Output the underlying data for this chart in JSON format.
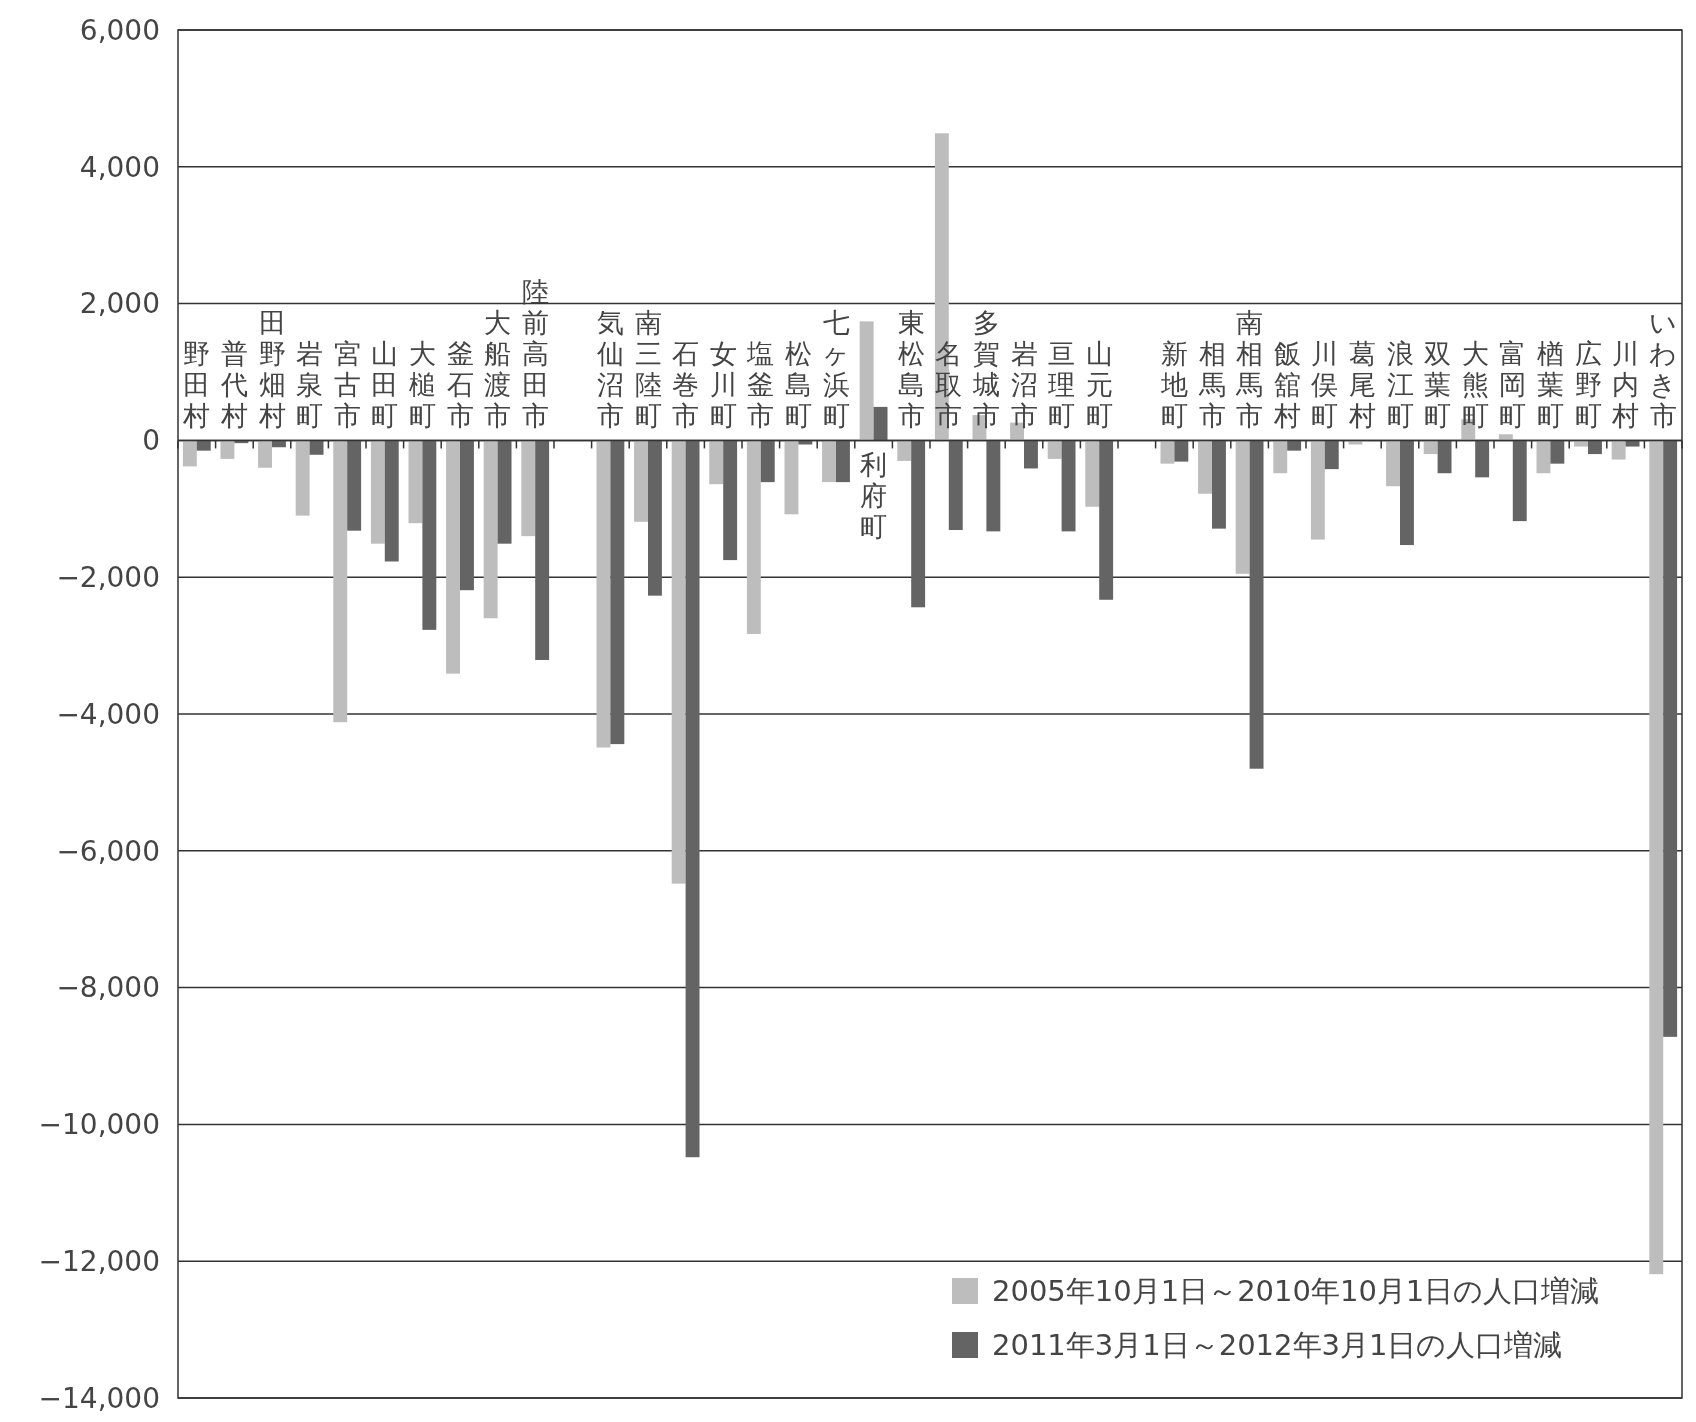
{
  "chart_data": {
    "type": "bar",
    "categories": [
      "野田村",
      "普代村",
      "田野畑村",
      "岩泉町",
      "宮古市",
      "山田町",
      "大槌町",
      "釜石市",
      "大船渡市",
      "陸前高田市",
      null,
      "気仙沼市",
      "南三陸町",
      "石巻市",
      "女川町",
      "塩釜市",
      "松島町",
      "七ヶ浜町",
      "利府町",
      "東松島市",
      "名取市",
      "多賀城市",
      "岩沼市",
      "亘理町",
      "山元町",
      null,
      "新地町",
      "相馬市",
      "南相馬市",
      "飯舘村",
      "川俣町",
      "葛尾村",
      "浪江町",
      "双葉町",
      "大熊町",
      "富岡町",
      "楢葉町",
      "広野町",
      "川内村",
      "いわき市"
    ],
    "series": [
      {
        "name": "2005年10月1日～2010年10月1日の人口増減",
        "color": "#bdbdbd",
        "values": [
          -380,
          -270,
          -400,
          -1100,
          -4120,
          -1510,
          -1210,
          -3410,
          -2600,
          -1400,
          null,
          -4490,
          -1190,
          -6480,
          -640,
          -2830,
          -1080,
          -610,
          1740,
          -300,
          4490,
          370,
          260,
          -270,
          -970,
          null,
          -340,
          -780,
          -1950,
          -480,
          -1450,
          -60,
          -670,
          -200,
          310,
          90,
          -480,
          -90,
          -280,
          -12190
        ]
      },
      {
        "name": "2011年3月1日～2012年3月1日の人口増減",
        "color": "#646464",
        "values": [
          -150,
          -40,
          -100,
          -210,
          -1320,
          -1770,
          -2770,
          -2190,
          -1510,
          -3210,
          null,
          -4440,
          -2270,
          -10480,
          -1750,
          -610,
          -60,
          -610,
          490,
          -2440,
          -1310,
          -1330,
          -410,
          -1330,
          -2330,
          null,
          -310,
          -1290,
          -4800,
          -150,
          -420,
          0,
          -1530,
          -480,
          -540,
          -1180,
          -340,
          -200,
          -90,
          -8720
        ]
      }
    ],
    "ylim": [
      -14000,
      6000
    ],
    "yticks": [
      {
        "value": -14000,
        "label": "−14,000"
      },
      {
        "value": -12000,
        "label": "−12,000"
      },
      {
        "value": -10000,
        "label": "−10,000"
      },
      {
        "value": -8000,
        "label": "−8,000"
      },
      {
        "value": -6000,
        "label": "−6,000"
      },
      {
        "value": -4000,
        "label": "−4,000"
      },
      {
        "value": -2000,
        "label": "−2,000"
      },
      0,
      {
        "value": 2000,
        "label": "2,000"
      },
      {
        "value": 4000,
        "label": "4,000"
      },
      {
        "value": 6000,
        "label": "6,000"
      }
    ],
    "grid": "y",
    "legend": "bottom right"
  }
}
